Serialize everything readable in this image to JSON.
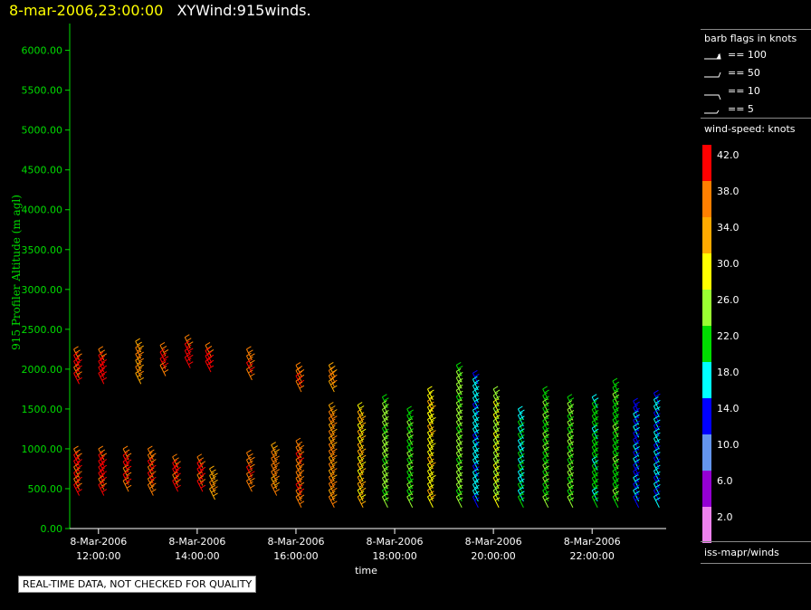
{
  "header": {
    "datetime": "8-mar-2006,23:00:00",
    "title": "XYWind:915winds."
  },
  "legend": {
    "barb_title": "barb flags in knots",
    "barb_items": [
      "== 100",
      "== 50",
      "== 10",
      "== 5"
    ],
    "speed_title": "wind-speed: knots",
    "speed_labels": [
      "42.0",
      "38.0",
      "34.0",
      "30.0",
      "26.0",
      "22.0",
      "18.0",
      "14.0",
      "10.0",
      "6.0",
      "2.0"
    ],
    "speed_colors": [
      "#ff0000",
      "#ff7f00",
      "#ffaa00",
      "#ffff00",
      "#9aff32",
      "#00dd00",
      "#00ffff",
      "#0000ff",
      "#6495ed",
      "#9400d3",
      "#ee82ee"
    ],
    "source": "iss-mapr/winds"
  },
  "footer": {
    "quality_note": "REAL-TIME DATA, NOT CHECKED FOR QUALITY"
  },
  "chart_data": {
    "type": "scatter",
    "title": "XYWind:915winds.",
    "xlabel": "time",
    "ylabel": "915 Profiler Altitude (m agl)",
    "ylim": [
      0,
      6200
    ],
    "xlim": [
      "11:25",
      "23:30"
    ],
    "y_ticks": [
      "0.00",
      "500.00",
      "1000.00",
      "1500.00",
      "2000.00",
      "2500.00",
      "3000.00",
      "3500.00",
      "4000.00",
      "4500.00",
      "5000.00",
      "5500.00",
      "6000.00"
    ],
    "x_ticks": [
      {
        "date": "8-Mar-2006",
        "time": "12:00:00"
      },
      {
        "date": "8-Mar-2006",
        "time": "14:00:00"
      },
      {
        "date": "8-Mar-2006",
        "time": "16:00:00"
      },
      {
        "date": "8-Mar-2006",
        "time": "18:00:00"
      },
      {
        "date": "8-Mar-2006",
        "time": "20:00:00"
      },
      {
        "date": "8-Mar-2006",
        "time": "22:00:00"
      }
    ],
    "series": [
      {
        "time": "11:30",
        "low": [
          550,
          1000
        ],
        "high": [
          1950,
          2250
        ],
        "speed": 40
      },
      {
        "time": "12:00",
        "low": [
          550,
          1000
        ],
        "high": [
          1950,
          2250
        ],
        "speed": 41
      },
      {
        "time": "12:30",
        "low": [
          600,
          1000
        ],
        "high": null,
        "speed": 40
      },
      {
        "time": "12:45",
        "low": null,
        "high": [
          1950,
          2350
        ],
        "speed": 36
      },
      {
        "time": "13:00",
        "low": [
          550,
          1000
        ],
        "high": null,
        "speed": 39
      },
      {
        "time": "13:15",
        "low": null,
        "high": [
          2050,
          2300
        ],
        "speed": 40
      },
      {
        "time": "13:30",
        "low": [
          600,
          900
        ],
        "high": null,
        "speed": 40
      },
      {
        "time": "13:45",
        "low": null,
        "high": [
          2150,
          2400
        ],
        "speed": 41
      },
      {
        "time": "14:00",
        "low": [
          600,
          900
        ],
        "high": null,
        "speed": 40
      },
      {
        "time": "14:10",
        "low": null,
        "high": [
          2100,
          2300
        ],
        "speed": 41
      },
      {
        "time": "14:15",
        "low": [
          500,
          750
        ],
        "high": null,
        "speed": 35
      },
      {
        "time": "15:00",
        "low": [
          600,
          950
        ],
        "high": [
          2000,
          2250
        ],
        "speed": 38
      },
      {
        "time": "15:30",
        "low": [
          550,
          1050
        ],
        "high": null,
        "speed": 37
      },
      {
        "time": "16:00",
        "low": [
          400,
          1100
        ],
        "high": [
          1850,
          2050
        ],
        "speed": 38
      },
      {
        "time": "16:40",
        "low": [
          400,
          1550
        ],
        "high": [
          1850,
          2050
        ],
        "speed": 36
      },
      {
        "time": "17:15",
        "low": [
          400,
          1550
        ],
        "high": null,
        "speed": 32
      },
      {
        "time": "17:45",
        "low": [
          400,
          1650
        ],
        "high": null,
        "speed": 25
      },
      {
        "time": "18:15",
        "low": [
          400,
          1500
        ],
        "high": null,
        "speed": 23
      },
      {
        "time": "18:40",
        "low": [
          400,
          1450
        ],
        "high": [
          1450,
          1750
        ],
        "speed": 30
      },
      {
        "time": "19:15",
        "low": [
          400,
          2050
        ],
        "high": null,
        "speed": 25
      },
      {
        "time": "19:35",
        "low": [
          400,
          1950
        ],
        "high": null,
        "speed": 17
      },
      {
        "time": "20:00",
        "low": [
          400,
          1750
        ],
        "high": null,
        "speed": 27
      },
      {
        "time": "20:30",
        "low": [
          400,
          1500
        ],
        "high": null,
        "speed": 19
      },
      {
        "time": "21:00",
        "low": [
          400,
          1750
        ],
        "high": null,
        "speed": 23
      },
      {
        "time": "21:30",
        "low": [
          400,
          1650
        ],
        "high": null,
        "speed": 24
      },
      {
        "time": "22:00",
        "low": [
          400,
          1650
        ],
        "high": null,
        "speed": 21
      },
      {
        "time": "22:25",
        "low": [
          400,
          1850
        ],
        "high": null,
        "speed": 22
      },
      {
        "time": "22:50",
        "low": [
          400,
          1600
        ],
        "high": null,
        "speed": 15
      },
      {
        "time": "23:15",
        "low": [
          400,
          1700
        ],
        "high": null,
        "speed": 16
      }
    ]
  }
}
